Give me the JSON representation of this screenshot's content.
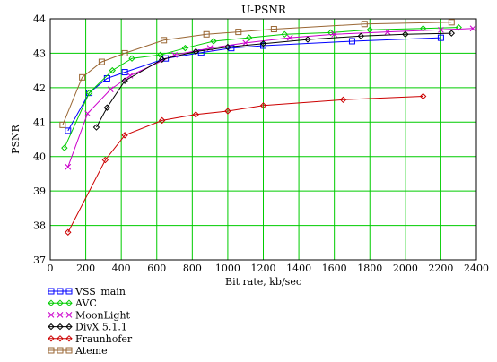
{
  "chart_data": {
    "type": "line",
    "title": "U-PSNR",
    "xlabel": "Bit rate, kb/sec",
    "ylabel": "PSNR",
    "xlim": [
      0,
      2400
    ],
    "ylim": [
      37,
      44
    ],
    "x_ticks": [
      "0",
      "200",
      "400",
      "600",
      "800",
      "1000",
      "1200",
      "1400",
      "1600",
      "1800",
      "2000",
      "2200",
      "2400"
    ],
    "y_ticks": [
      "37",
      "38",
      "39",
      "40",
      "41",
      "42",
      "43",
      "44"
    ],
    "grid": true,
    "legend_position": "bottom-left",
    "series": [
      {
        "name": "VSS_main",
        "color": "#0000ff",
        "marker": "square",
        "points": [
          [
            100,
            40.75
          ],
          [
            220,
            41.85
          ],
          [
            320,
            42.27
          ],
          [
            420,
            42.45
          ],
          [
            650,
            42.85
          ],
          [
            850,
            43.02
          ],
          [
            1020,
            43.15
          ],
          [
            1200,
            43.22
          ],
          [
            1700,
            43.35
          ],
          [
            2200,
            43.45
          ]
        ]
      },
      {
        "name": "AVC",
        "color": "#00cc00",
        "marker": "diamond",
        "points": [
          [
            80,
            40.25
          ],
          [
            220,
            41.85
          ],
          [
            350,
            42.5
          ],
          [
            460,
            42.85
          ],
          [
            620,
            42.95
          ],
          [
            760,
            43.15
          ],
          [
            920,
            43.35
          ],
          [
            1120,
            43.45
          ],
          [
            1320,
            43.55
          ],
          [
            1580,
            43.6
          ],
          [
            1800,
            43.68
          ],
          [
            2100,
            43.72
          ],
          [
            2300,
            43.75
          ]
        ]
      },
      {
        "name": "MoonLight",
        "color": "#cc00cc",
        "marker": "x",
        "points": [
          [
            100,
            39.7
          ],
          [
            210,
            41.25
          ],
          [
            340,
            41.95
          ],
          [
            450,
            42.35
          ],
          [
            700,
            42.95
          ],
          [
            900,
            43.15
          ],
          [
            1100,
            43.3
          ],
          [
            1350,
            43.45
          ],
          [
            1600,
            43.55
          ],
          [
            1900,
            43.62
          ],
          [
            2200,
            43.68
          ],
          [
            2380,
            43.72
          ]
        ]
      },
      {
        "name": "DivX 5.1.1",
        "color": "#000000",
        "marker": "diamond",
        "points": [
          [
            260,
            40.85
          ],
          [
            320,
            41.42
          ],
          [
            420,
            42.2
          ],
          [
            630,
            42.82
          ],
          [
            820,
            43.05
          ],
          [
            1000,
            43.18
          ],
          [
            1200,
            43.28
          ],
          [
            1450,
            43.4
          ],
          [
            1750,
            43.5
          ],
          [
            2000,
            43.55
          ],
          [
            2260,
            43.58
          ]
        ]
      },
      {
        "name": "Fraunhofer",
        "color": "#cc0000",
        "marker": "diamond",
        "points": [
          [
            100,
            37.8
          ],
          [
            310,
            39.9
          ],
          [
            420,
            40.62
          ],
          [
            630,
            41.05
          ],
          [
            820,
            41.22
          ],
          [
            1000,
            41.32
          ],
          [
            1200,
            41.48
          ],
          [
            1650,
            41.65
          ],
          [
            2100,
            41.75
          ]
        ]
      },
      {
        "name": "Ateme",
        "color": "#996633",
        "marker": "square",
        "points": [
          [
            70,
            40.92
          ],
          [
            180,
            42.3
          ],
          [
            290,
            42.75
          ],
          [
            420,
            43.0
          ],
          [
            640,
            43.38
          ],
          [
            880,
            43.55
          ],
          [
            1060,
            43.62
          ],
          [
            1260,
            43.7
          ],
          [
            1770,
            43.85
          ],
          [
            2260,
            43.9
          ]
        ]
      }
    ]
  }
}
